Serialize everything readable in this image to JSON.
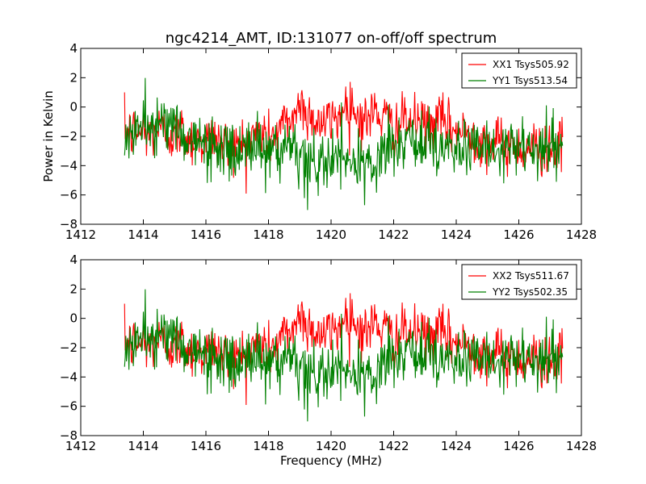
{
  "chart_data": [
    {
      "type": "line",
      "title": "ngc4214_AMT, ID:131077 on-off/off spectrum",
      "xlabel": "",
      "ylabel": "Power in Kelvin",
      "xlim": [
        1412,
        1428
      ],
      "ylim": [
        -8,
        4
      ],
      "xticks": [
        1412,
        1414,
        1416,
        1418,
        1420,
        1422,
        1424,
        1426,
        1428
      ],
      "yticks": [
        -8,
        -6,
        -4,
        -2,
        0,
        2,
        4
      ],
      "xtick_labels": [
        "1412",
        "1414",
        "1416",
        "1418",
        "1420",
        "1422",
        "1424",
        "1426",
        "1428"
      ],
      "ytick_labels": [
        "−8",
        "−6",
        "−4",
        "−2",
        "0",
        "2",
        "4"
      ],
      "legend_position": "top-right",
      "grid": false,
      "x_range": [
        1413.4,
        1427.4
      ],
      "series": [
        {
          "name": "XX1 Tsys505.92",
          "color": "#ff0000",
          "x": [
            1413.4,
            1413.6,
            1413.8,
            1414.0,
            1414.2,
            1414.4,
            1414.6,
            1414.8,
            1415.0,
            1415.2,
            1415.4,
            1415.6,
            1415.8,
            1416.0,
            1416.2,
            1416.4,
            1416.6,
            1416.8,
            1417.0,
            1417.2,
            1417.4,
            1417.6,
            1417.8,
            1418.0,
            1418.2,
            1418.4,
            1418.6,
            1418.8,
            1419.0,
            1419.2,
            1419.4,
            1419.6,
            1419.8,
            1420.0,
            1420.2,
            1420.4,
            1420.6,
            1420.8,
            1421.0,
            1421.2,
            1421.4,
            1421.6,
            1421.8,
            1422.0,
            1422.2,
            1422.4,
            1422.6,
            1422.8,
            1423.0,
            1423.2,
            1423.4,
            1423.6,
            1423.8,
            1424.0,
            1424.2,
            1424.4,
            1424.6,
            1424.8,
            1425.0,
            1425.2,
            1425.4,
            1425.6,
            1425.8,
            1426.0,
            1426.2,
            1426.4,
            1426.6,
            1426.8,
            1427.0,
            1427.2,
            1427.4
          ],
          "values": [
            -1.5,
            -1.8,
            -1.6,
            -1.7,
            -1.9,
            -1.5,
            -1.6,
            -1.8,
            -2.0,
            -1.7,
            -2.1,
            -2.3,
            -2.2,
            -2.4,
            -2.0,
            -2.5,
            -2.6,
            -2.3,
            -2.8,
            -2.4,
            -2.1,
            -2.0,
            -1.8,
            -2.2,
            -1.9,
            -1.4,
            -1.0,
            -0.6,
            0.2,
            -0.2,
            -0.8,
            -1.0,
            -1.2,
            -0.9,
            -0.7,
            -0.2,
            0.5,
            -0.5,
            -0.9,
            -0.8,
            -0.3,
            -0.6,
            -1.0,
            -1.3,
            -1.2,
            -0.9,
            -1.1,
            -1.0,
            -1.3,
            -1.4,
            -0.8,
            -1.2,
            -1.5,
            -1.6,
            -1.8,
            -1.7,
            -2.0,
            -2.2,
            -2.4,
            -2.6,
            -2.5,
            -2.7,
            -2.6,
            -2.8,
            -2.9,
            -2.7,
            -2.8,
            -2.9,
            -2.6,
            -2.7,
            -2.8
          ],
          "noise": 0.9
        },
        {
          "name": "YY1 Tsys513.54",
          "color": "#008000",
          "x": [
            1413.4,
            1413.6,
            1413.8,
            1414.0,
            1414.2,
            1414.4,
            1414.6,
            1414.8,
            1415.0,
            1415.2,
            1415.4,
            1415.6,
            1415.8,
            1416.0,
            1416.2,
            1416.4,
            1416.6,
            1416.8,
            1417.0,
            1417.2,
            1417.4,
            1417.6,
            1417.8,
            1418.0,
            1418.2,
            1418.4,
            1418.6,
            1418.8,
            1419.0,
            1419.2,
            1419.4,
            1419.6,
            1419.8,
            1420.0,
            1420.2,
            1420.4,
            1420.6,
            1420.8,
            1421.0,
            1421.2,
            1421.4,
            1421.6,
            1421.8,
            1422.0,
            1422.2,
            1422.4,
            1422.6,
            1422.8,
            1423.0,
            1423.2,
            1423.4,
            1423.6,
            1423.8,
            1424.0,
            1424.2,
            1424.4,
            1424.6,
            1424.8,
            1425.0,
            1425.2,
            1425.4,
            1425.6,
            1425.8,
            1426.0,
            1426.2,
            1426.4,
            1426.6,
            1426.8,
            1427.0,
            1427.2,
            1427.4
          ],
          "values": [
            -1.8,
            -2.0,
            -1.5,
            -1.6,
            -1.4,
            -1.0,
            -0.9,
            -1.2,
            -1.5,
            -1.8,
            -2.0,
            -2.2,
            -2.5,
            -2.7,
            -2.6,
            -2.8,
            -3.0,
            -3.0,
            -3.2,
            -2.9,
            -2.6,
            -2.4,
            -2.8,
            -3.0,
            -3.2,
            -3.4,
            -3.5,
            -3.3,
            -3.6,
            -3.8,
            -3.9,
            -4.0,
            -3.8,
            -3.5,
            -3.6,
            -3.8,
            -3.6,
            -3.8,
            -4.0,
            -4.1,
            -3.9,
            -3.4,
            -3.0,
            -2.8,
            -2.6,
            -2.4,
            -2.5,
            -2.6,
            -2.4,
            -2.3,
            -2.5,
            -2.6,
            -2.7,
            -2.9,
            -2.8,
            -3.0,
            -3.1,
            -3.0,
            -2.9,
            -3.0,
            -3.2,
            -3.0,
            -2.8,
            -3.0,
            -2.9,
            -3.0,
            -3.1,
            -3.0,
            -3.0,
            -2.9,
            -2.8
          ],
          "noise": 1.0
        }
      ]
    },
    {
      "type": "line",
      "title": "",
      "xlabel": "Frequency (MHz)",
      "ylabel": "",
      "xlim": [
        1412,
        1428
      ],
      "ylim": [
        -8,
        4
      ],
      "xticks": [
        1412,
        1414,
        1416,
        1418,
        1420,
        1422,
        1424,
        1426,
        1428
      ],
      "yticks": [
        -8,
        -6,
        -4,
        -2,
        0,
        2,
        4
      ],
      "xtick_labels": [
        "1412",
        "1414",
        "1416",
        "1418",
        "1420",
        "1422",
        "1424",
        "1426",
        "1428"
      ],
      "ytick_labels": [
        "−8",
        "−6",
        "−4",
        "−2",
        "0",
        "2",
        "4"
      ],
      "legend_position": "top-right",
      "grid": false,
      "x_range": [
        1413.4,
        1427.4
      ],
      "series": [
        {
          "name": "XX2 Tsys511.67",
          "color": "#ff0000",
          "x": [
            1413.4,
            1413.6,
            1413.8,
            1414.0,
            1414.2,
            1414.4,
            1414.6,
            1414.8,
            1415.0,
            1415.2,
            1415.4,
            1415.6,
            1415.8,
            1416.0,
            1416.2,
            1416.4,
            1416.6,
            1416.8,
            1417.0,
            1417.2,
            1417.4,
            1417.6,
            1417.8,
            1418.0,
            1418.2,
            1418.4,
            1418.6,
            1418.8,
            1419.0,
            1419.2,
            1419.4,
            1419.6,
            1419.8,
            1420.0,
            1420.2,
            1420.4,
            1420.6,
            1420.8,
            1421.0,
            1421.2,
            1421.4,
            1421.6,
            1421.8,
            1422.0,
            1422.2,
            1422.4,
            1422.6,
            1422.8,
            1423.0,
            1423.2,
            1423.4,
            1423.6,
            1423.8,
            1424.0,
            1424.2,
            1424.4,
            1424.6,
            1424.8,
            1425.0,
            1425.2,
            1425.4,
            1425.6,
            1425.8,
            1426.0,
            1426.2,
            1426.4,
            1426.6,
            1426.8,
            1427.0,
            1427.2,
            1427.4
          ],
          "values": [
            -1.5,
            -1.8,
            -1.6,
            -1.7,
            -1.9,
            -1.5,
            -1.6,
            -1.8,
            -2.0,
            -1.7,
            -2.1,
            -2.3,
            -2.2,
            -2.4,
            -2.0,
            -2.5,
            -2.6,
            -2.3,
            -2.8,
            -2.4,
            -2.1,
            -2.0,
            -1.8,
            -2.2,
            -1.9,
            -1.4,
            -1.0,
            -0.6,
            0.2,
            -0.2,
            -0.8,
            -1.0,
            -1.2,
            -0.9,
            -0.7,
            -0.2,
            0.5,
            -0.5,
            -0.9,
            -0.8,
            -0.3,
            -0.6,
            -1.0,
            -1.3,
            -1.2,
            -0.9,
            -1.1,
            -1.0,
            -1.3,
            -1.4,
            -0.8,
            -1.2,
            -1.5,
            -1.6,
            -1.8,
            -1.7,
            -2.0,
            -2.2,
            -2.4,
            -2.6,
            -2.5,
            -2.7,
            -2.6,
            -2.8,
            -2.9,
            -2.7,
            -2.8,
            -2.9,
            -2.6,
            -2.7,
            -2.8
          ],
          "noise": 0.9
        },
        {
          "name": "YY2 Tsys502.35",
          "color": "#008000",
          "x": [
            1413.4,
            1413.6,
            1413.8,
            1414.0,
            1414.2,
            1414.4,
            1414.6,
            1414.8,
            1415.0,
            1415.2,
            1415.4,
            1415.6,
            1415.8,
            1416.0,
            1416.2,
            1416.4,
            1416.6,
            1416.8,
            1417.0,
            1417.2,
            1417.4,
            1417.6,
            1417.8,
            1418.0,
            1418.2,
            1418.4,
            1418.6,
            1418.8,
            1419.0,
            1419.2,
            1419.4,
            1419.6,
            1419.8,
            1420.0,
            1420.2,
            1420.4,
            1420.6,
            1420.8,
            1421.0,
            1421.2,
            1421.4,
            1421.6,
            1421.8,
            1422.0,
            1422.2,
            1422.4,
            1422.6,
            1422.8,
            1423.0,
            1423.2,
            1423.4,
            1423.6,
            1423.8,
            1424.0,
            1424.2,
            1424.4,
            1424.6,
            1424.8,
            1425.0,
            1425.2,
            1425.4,
            1425.6,
            1425.8,
            1426.0,
            1426.2,
            1426.4,
            1426.6,
            1426.8,
            1427.0,
            1427.2,
            1427.4
          ],
          "values": [
            -1.8,
            -2.0,
            -1.5,
            -1.6,
            -1.4,
            -1.0,
            -0.9,
            -1.2,
            -1.5,
            -1.8,
            -2.0,
            -2.2,
            -2.5,
            -2.7,
            -2.6,
            -2.8,
            -3.0,
            -3.0,
            -3.2,
            -2.9,
            -2.6,
            -2.4,
            -2.8,
            -3.0,
            -3.2,
            -3.4,
            -3.5,
            -3.3,
            -3.6,
            -3.8,
            -3.9,
            -4.0,
            -3.8,
            -3.5,
            -3.6,
            -3.8,
            -3.6,
            -3.8,
            -4.0,
            -4.1,
            -3.9,
            -3.4,
            -3.0,
            -2.8,
            -2.6,
            -2.4,
            -2.5,
            -2.6,
            -2.4,
            -2.3,
            -2.5,
            -2.6,
            -2.7,
            -2.9,
            -2.8,
            -3.0,
            -3.1,
            -3.0,
            -2.9,
            -3.0,
            -3.2,
            -3.0,
            -2.8,
            -3.0,
            -2.9,
            -3.0,
            -3.1,
            -3.0,
            -3.0,
            -2.9,
            -2.8
          ],
          "noise": 1.0
        }
      ]
    }
  ]
}
